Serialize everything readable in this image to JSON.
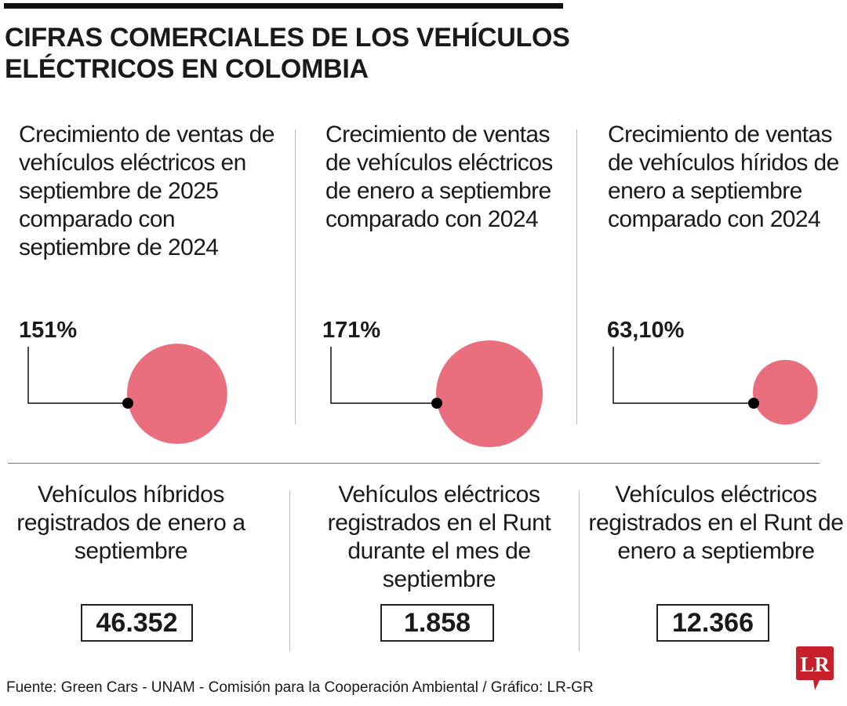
{
  "title": "CIFRAS COMERCIALES DE LOS VEHÍCULOS ELÉCTRICOS EN COLOMBIA",
  "chart_data": {
    "type": "bubble",
    "title": "CIFRAS COMERCIALES DE LOS VEHÍCULOS ELÉCTRICOS EN COLOMBIA",
    "categories": [
      "Crecimiento de ventas de vehículos eléctricos en septiembre de 2025 comparado con septiembre de 2024",
      "Crecimiento de ventas de vehículos eléctricos de enero a septiembre comparado con 2024",
      "Crecimiento de ventas de vehículos híridos de enero a septiembre comparado con 2024"
    ],
    "values": [
      151,
      171,
      63.1
    ],
    "labels": [
      "151%",
      "171%",
      "63,10%"
    ],
    "color": "#e96e7e"
  },
  "stats": [
    {
      "label": "Vehículos híbridos registrados de enero a septiembre",
      "value": "46.352"
    },
    {
      "label": "Vehículos eléctricos registrados en el Runt durante el mes de septiembre",
      "value": "1.858"
    },
    {
      "label": "Vehículos eléctricos registrados en el Runt de enero a septiembre",
      "value": "12.366"
    }
  ],
  "footer": "Fuente: Green Cars - UNAM - Comisión para la Cooperación Ambiental / Gráfico: LR-GR",
  "logo": "LR",
  "colors": {
    "bubble": "#e96e7e",
    "logo": "#c8202a"
  }
}
